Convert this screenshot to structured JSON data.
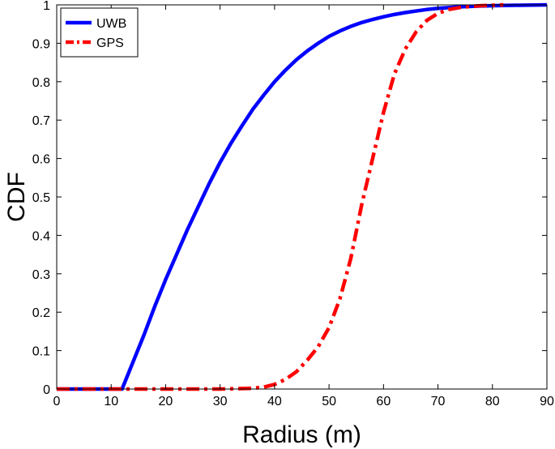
{
  "chart_data": {
    "type": "line",
    "title": "",
    "xlabel": "Radius (m)",
    "ylabel": "CDF",
    "xlim": [
      0,
      90
    ],
    "ylim": [
      0,
      1
    ],
    "xticks": [
      0,
      10,
      20,
      30,
      40,
      50,
      60,
      70,
      80,
      90
    ],
    "yticks": [
      0,
      0.1,
      0.2,
      0.3,
      0.4,
      0.5,
      0.6,
      0.7,
      0.8,
      0.9,
      1
    ],
    "grid": false,
    "legend_position": "top-left",
    "series": [
      {
        "name": "UWB",
        "color": "#0000ff",
        "line_style": "solid",
        "x": [
          0,
          10,
          12,
          14,
          16,
          18,
          20,
          22,
          24,
          26,
          28,
          30,
          32,
          34,
          36,
          38,
          40,
          42,
          44,
          46,
          48,
          50,
          52,
          54,
          56,
          58,
          60,
          62,
          64,
          66,
          68,
          70,
          72,
          74,
          76,
          78,
          80,
          85,
          90
        ],
        "y": [
          0,
          0,
          0,
          0.07,
          0.14,
          0.215,
          0.285,
          0.35,
          0.415,
          0.475,
          0.535,
          0.59,
          0.64,
          0.685,
          0.728,
          0.765,
          0.8,
          0.83,
          0.857,
          0.88,
          0.9,
          0.918,
          0.932,
          0.944,
          0.954,
          0.962,
          0.969,
          0.975,
          0.98,
          0.984,
          0.988,
          0.991,
          0.993,
          0.995,
          0.996,
          0.997,
          0.998,
          0.999,
          1
        ]
      },
      {
        "name": "GPS",
        "color": "#ff0000",
        "line_style": "dash-dot",
        "x": [
          0,
          30,
          36,
          38,
          40,
          42,
          44,
          46,
          48,
          50,
          52,
          54,
          56,
          58,
          60,
          62,
          64,
          66,
          68,
          70,
          72,
          74,
          76,
          78,
          80,
          82
        ],
        "y": [
          0,
          0,
          0.002,
          0.005,
          0.012,
          0.025,
          0.045,
          0.075,
          0.11,
          0.16,
          0.235,
          0.34,
          0.48,
          0.6,
          0.72,
          0.82,
          0.885,
          0.93,
          0.96,
          0.978,
          0.988,
          0.993,
          0.996,
          0.998,
          0.999,
          1
        ]
      }
    ]
  }
}
